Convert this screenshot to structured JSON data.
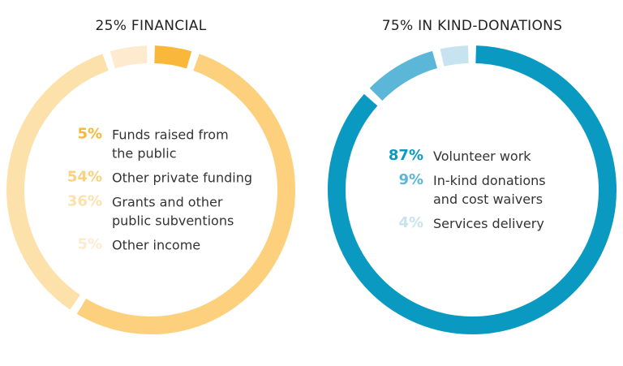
{
  "chart_data": [
    {
      "type": "pie",
      "title": "25% FINANCIAL",
      "categories": [
        "Funds raised from\nthe public",
        "Other private funding",
        "Grants and other\npublic subventions",
        "Other income"
      ],
      "values": [
        5,
        54,
        36,
        5
      ],
      "value_labels": [
        "5%",
        "54%",
        "36%",
        "5%"
      ],
      "colors": [
        "#f9b83a",
        "#fcd07c",
        "#fde1ab",
        "#feebcf"
      ]
    },
    {
      "type": "pie",
      "title": "75% IN KIND-DONATIONS",
      "categories": [
        "Volunteer work",
        "In-kind donations\nand cost waivers",
        "Services delivery"
      ],
      "values": [
        87,
        9,
        4
      ],
      "value_labels": [
        "87%",
        "9%",
        "4%"
      ],
      "colors": [
        "#0a9ac1",
        "#5bb6d7",
        "#c6e3ef"
      ]
    }
  ]
}
